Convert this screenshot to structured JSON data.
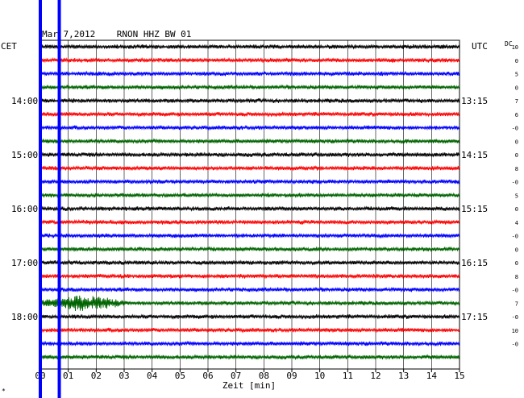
{
  "chart_data": {
    "type": "line",
    "title": "Mar 7,2012    RNON HHZ BW 01",
    "left_tz": "CET",
    "right_tz": "UTC",
    "dc_label": "DC",
    "xlabel": "Zeit [min]",
    "corner_mark": "*",
    "x_ticks": [
      "00",
      "01",
      "02",
      "03",
      "04",
      "05",
      "06",
      "07",
      "08",
      "09",
      "10",
      "11",
      "12",
      "13",
      "14",
      "15"
    ],
    "xlim": [
      0,
      15
    ],
    "trace_colors": [
      "#000000",
      "#ff0000",
      "#0000ff",
      "#006400"
    ],
    "trace_count": 24,
    "left_hour_labels": [
      {
        "trace": 4,
        "text": "14:00"
      },
      {
        "trace": 8,
        "text": "15:00"
      },
      {
        "trace": 12,
        "text": "16:00"
      },
      {
        "trace": 16,
        "text": "17:00"
      },
      {
        "trace": 20,
        "text": "18:00"
      }
    ],
    "right_hour_labels": [
      {
        "trace": 4,
        "text": "13:15"
      },
      {
        "trace": 8,
        "text": "14:15"
      },
      {
        "trace": 12,
        "text": "15:15"
      },
      {
        "trace": 16,
        "text": "16:15"
      },
      {
        "trace": 20,
        "text": "17:15"
      }
    ],
    "dc_values": [
      "10",
      "0",
      "5",
      "0",
      "7",
      "6",
      "-0",
      "0",
      "0",
      "8",
      "-0",
      "5",
      "0",
      "4",
      "-0",
      "0",
      "0",
      "8",
      "-0",
      "7",
      "-0",
      "10",
      "-0"
    ],
    "event": {
      "trace": 19,
      "start_min": 0.0,
      "peak_min": 1.5,
      "end_min": 3.5
    },
    "vertical_markers_min": [
      0.0,
      0.65
    ]
  }
}
